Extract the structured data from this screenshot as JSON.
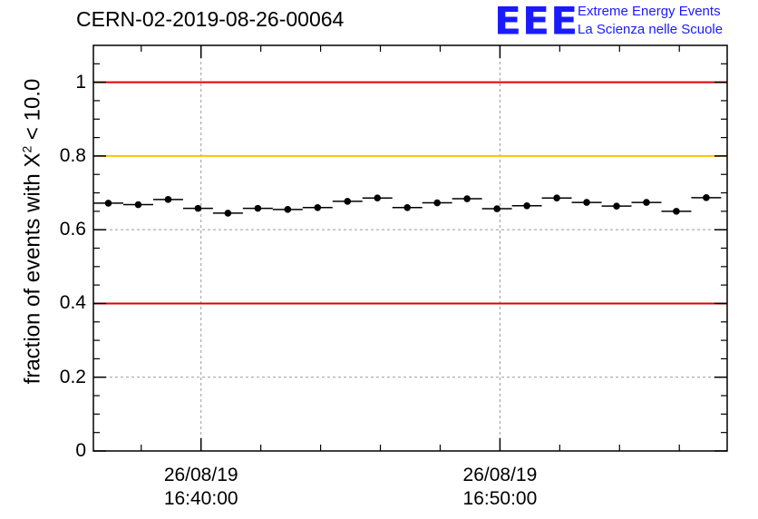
{
  "header": {
    "run_title": "CERN-02-2019-08-26-00064"
  },
  "logo": {
    "mark": "EEE",
    "line1": "Extreme Energy Events",
    "line2": "La Scienza nelle Scuole"
  },
  "colors": {
    "threshold_red": "#e00000",
    "threshold_yellow": "#ffc000",
    "logo_blue": "#1a1aff"
  },
  "chart_data": {
    "type": "scatter",
    "title": "CERN-02-2019-08-26-00064",
    "ylabel_text": "fraction of events with X",
    "ylabel_sup": "2",
    "ylabel_tail": " < 10.0",
    "ylim": [
      0,
      1.1
    ],
    "yticks": [
      {
        "value": 0,
        "label": "0"
      },
      {
        "value": 0.2,
        "label": "0.2"
      },
      {
        "value": 0.4,
        "label": "0.4"
      },
      {
        "value": 0.6,
        "label": "0.6"
      },
      {
        "value": 0.8,
        "label": "0.8"
      },
      {
        "value": 1,
        "label": "1"
      }
    ],
    "xlim_minutes": [
      36.4,
      57.6
    ],
    "xticks": [
      {
        "minute": 40,
        "date": "26/08/19",
        "time": "16:40:00"
      },
      {
        "minute": 50,
        "date": "26/08/19",
        "time": "16:50:00"
      }
    ],
    "x_minor_ticks_minutes": [
      38,
      42,
      44,
      46,
      48,
      52,
      54,
      56
    ],
    "grid": true,
    "bin_width_minutes": 1,
    "series": [
      {
        "x_minutes": [
          36.9,
          37.9,
          38.9,
          39.9,
          40.9,
          41.9,
          42.9,
          43.9,
          44.9,
          45.9,
          46.9,
          47.9,
          48.9,
          49.9,
          50.9,
          51.9,
          52.9,
          53.9,
          54.9,
          55.9,
          56.9
        ],
        "values": [
          0.672,
          0.668,
          0.682,
          0.658,
          0.645,
          0.658,
          0.655,
          0.66,
          0.677,
          0.686,
          0.66,
          0.673,
          0.684,
          0.657,
          0.665,
          0.686,
          0.674,
          0.664,
          0.674,
          0.65,
          0.687
        ]
      }
    ],
    "reference_lines": [
      {
        "value": 1.0,
        "color": "#e00000"
      },
      {
        "value": 0.8,
        "color": "#ffc000"
      },
      {
        "value": 0.4,
        "color": "#e00000"
      }
    ]
  }
}
